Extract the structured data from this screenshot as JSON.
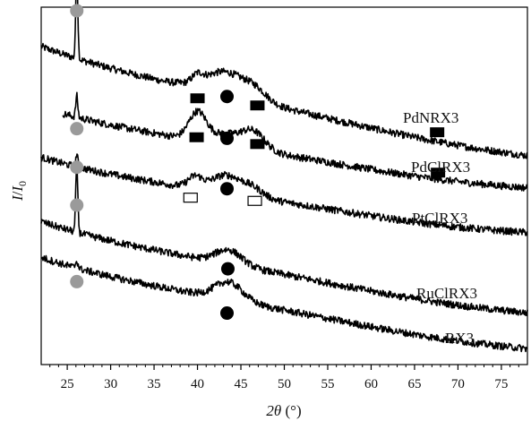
{
  "chart_data": {
    "type": "line",
    "xlabel": {
      "symbol": "2θ",
      "unit": " (°)"
    },
    "ylabel": {
      "main": "I",
      "sep": "/",
      "sub": "0"
    },
    "xlim": [
      22,
      78
    ],
    "xticks": [
      25,
      30,
      35,
      40,
      45,
      50,
      55,
      60,
      65,
      70,
      75
    ],
    "grid": false,
    "legend": "none",
    "series": [
      {
        "name": "PdNRX3",
        "baseline_start": 0.84,
        "baseline_end": 0.61,
        "peaks": [
          {
            "x": 26.1,
            "h": 0.24,
            "w": 0.12
          },
          {
            "x": 43.4,
            "h": 0.065,
            "w": 2.5
          },
          {
            "x": 40.0,
            "h": 0.02,
            "w": 0.6
          },
          {
            "x": 46.8,
            "h": 0.02,
            "w": 1.2
          }
        ],
        "markers": [
          {
            "x": 26.1,
            "y": 0.99,
            "shape": "circle-gray"
          },
          {
            "x": 40.0,
            "y": 0.745,
            "shape": "square-filled"
          },
          {
            "x": 43.4,
            "y": 0.75,
            "shape": "circle-black"
          },
          {
            "x": 46.9,
            "y": 0.725,
            "shape": "square-filled"
          },
          {
            "x": 67.6,
            "y": 0.65,
            "shape": "square-filled"
          }
        ]
      },
      {
        "name": "PdClRX3",
        "start_x": 24.5,
        "baseline_start": 0.67,
        "baseline_end": 0.52,
        "peaks": [
          {
            "x": 26.1,
            "h": 0.06,
            "w": 0.12
          },
          {
            "x": 40.0,
            "h": 0.075,
            "w": 1.0
          },
          {
            "x": 43.4,
            "h": 0.03,
            "w": 2.0
          },
          {
            "x": 46.5,
            "h": 0.045,
            "w": 1.3
          }
        ],
        "markers": [
          {
            "x": 26.1,
            "y": 0.66,
            "shape": "circle-gray"
          },
          {
            "x": 39.9,
            "y": 0.636,
            "shape": "square-filled"
          },
          {
            "x": 43.4,
            "y": 0.633,
            "shape": "circle-black"
          },
          {
            "x": 46.9,
            "y": 0.617,
            "shape": "square-filled"
          },
          {
            "x": 67.7,
            "y": 0.537,
            "shape": "square-filled"
          }
        ]
      },
      {
        "name": "PtClRX3",
        "baseline_start": 0.53,
        "baseline_end": 0.395,
        "peaks": [
          {
            "x": 26.1,
            "h": 0.035,
            "w": 0.12
          },
          {
            "x": 39.7,
            "h": 0.03,
            "w": 0.8
          },
          {
            "x": 43.4,
            "h": 0.05,
            "w": 1.8
          },
          {
            "x": 46.5,
            "h": 0.02,
            "w": 1.2
          }
        ],
        "markers": [
          {
            "x": 26.1,
            "y": 0.552,
            "shape": "circle-gray"
          },
          {
            "x": 39.2,
            "y": 0.467,
            "shape": "square-open"
          },
          {
            "x": 43.4,
            "y": 0.492,
            "shape": "circle-black"
          },
          {
            "x": 46.6,
            "y": 0.458,
            "shape": "square-open"
          }
        ]
      },
      {
        "name": "RuClRX3",
        "baseline_start": 0.35,
        "baseline_end": 0.17,
        "peaks": [
          {
            "x": 26.1,
            "h": 0.19,
            "w": 0.12
          },
          {
            "x": 43.6,
            "h": 0.04,
            "w": 1.5
          }
        ],
        "markers": [
          {
            "x": 26.1,
            "y": 0.446,
            "shape": "circle-gray"
          },
          {
            "x": 43.5,
            "y": 0.268,
            "shape": "circle-black"
          }
        ]
      },
      {
        "name": "RX3",
        "baseline_start": 0.25,
        "baseline_end": 0.07,
        "peaks": [
          {
            "x": 26.1,
            "h": 0.02,
            "w": 0.15
          },
          {
            "x": 43.6,
            "h": 0.05,
            "w": 1.6
          }
        ],
        "markers": [
          {
            "x": 26.1,
            "y": 0.232,
            "shape": "circle-gray"
          },
          {
            "x": 43.4,
            "y": 0.144,
            "shape": "circle-black"
          }
        ]
      }
    ]
  },
  "labels": [
    {
      "series": "PdNRX3",
      "text": "PdNRX3"
    },
    {
      "series": "PdClRX3",
      "text": "PdClRX3"
    },
    {
      "series": "PtClRX3",
      "text": "PtClRX3"
    },
    {
      "series": "RuClRX3",
      "text": "RuClRX3"
    },
    {
      "series": "RX3",
      "text": "RX3"
    }
  ]
}
